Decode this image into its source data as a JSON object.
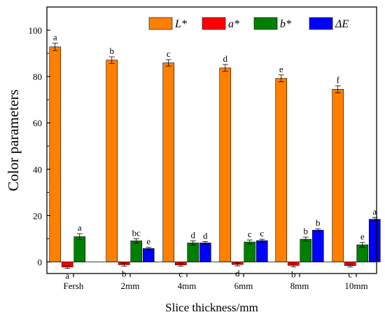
{
  "chart_data": {
    "type": "bar",
    "xlabel": "Slice thickness/mm",
    "ylabel": "Color parameters",
    "ylim": [
      -5,
      110
    ],
    "yticks": [
      0,
      20,
      40,
      60,
      80,
      100
    ],
    "categories": [
      "Fersh",
      "2mm",
      "4mm",
      "6mm",
      "8mm",
      "10mm"
    ],
    "legend_position": "top-right",
    "series": [
      {
        "name": "L*",
        "color": "#FF8000",
        "values": [
          92.8,
          87.1,
          85.9,
          83.7,
          79.2,
          74.5
        ],
        "errors": [
          1.6,
          1.4,
          1.4,
          1.5,
          1.5,
          1.5
        ],
        "labels": [
          "a",
          "b",
          "c",
          "d",
          "e",
          "f"
        ]
      },
      {
        "name": "a*",
        "color": "#FF0000",
        "values": [
          -2.2,
          -1.2,
          -1.3,
          -1.1,
          -1.5,
          -1.6
        ],
        "errors": [
          0.6,
          0.6,
          0.6,
          0.6,
          0.6,
          0.6
        ],
        "labels": [
          "a",
          "b",
          "c",
          "d",
          "b",
          "c"
        ]
      },
      {
        "name": "b*",
        "color": "#008000",
        "values": [
          10.9,
          9.1,
          8.2,
          8.6,
          9.8,
          7.4
        ],
        "errors": [
          1.3,
          0.9,
          0.9,
          0.9,
          0.9,
          1.0
        ],
        "labels": [
          "a",
          "bc",
          "d",
          "c",
          "b",
          "e"
        ]
      },
      {
        "name": "ΔE",
        "color": "#0000FF",
        "values": [
          null,
          5.8,
          8.2,
          9.2,
          13.7,
          18.4
        ],
        "errors": [
          null,
          0.5,
          0.6,
          0.6,
          0.6,
          0.8
        ],
        "labels": [
          null,
          "e",
          "d",
          "c",
          "b",
          "a"
        ]
      }
    ]
  }
}
